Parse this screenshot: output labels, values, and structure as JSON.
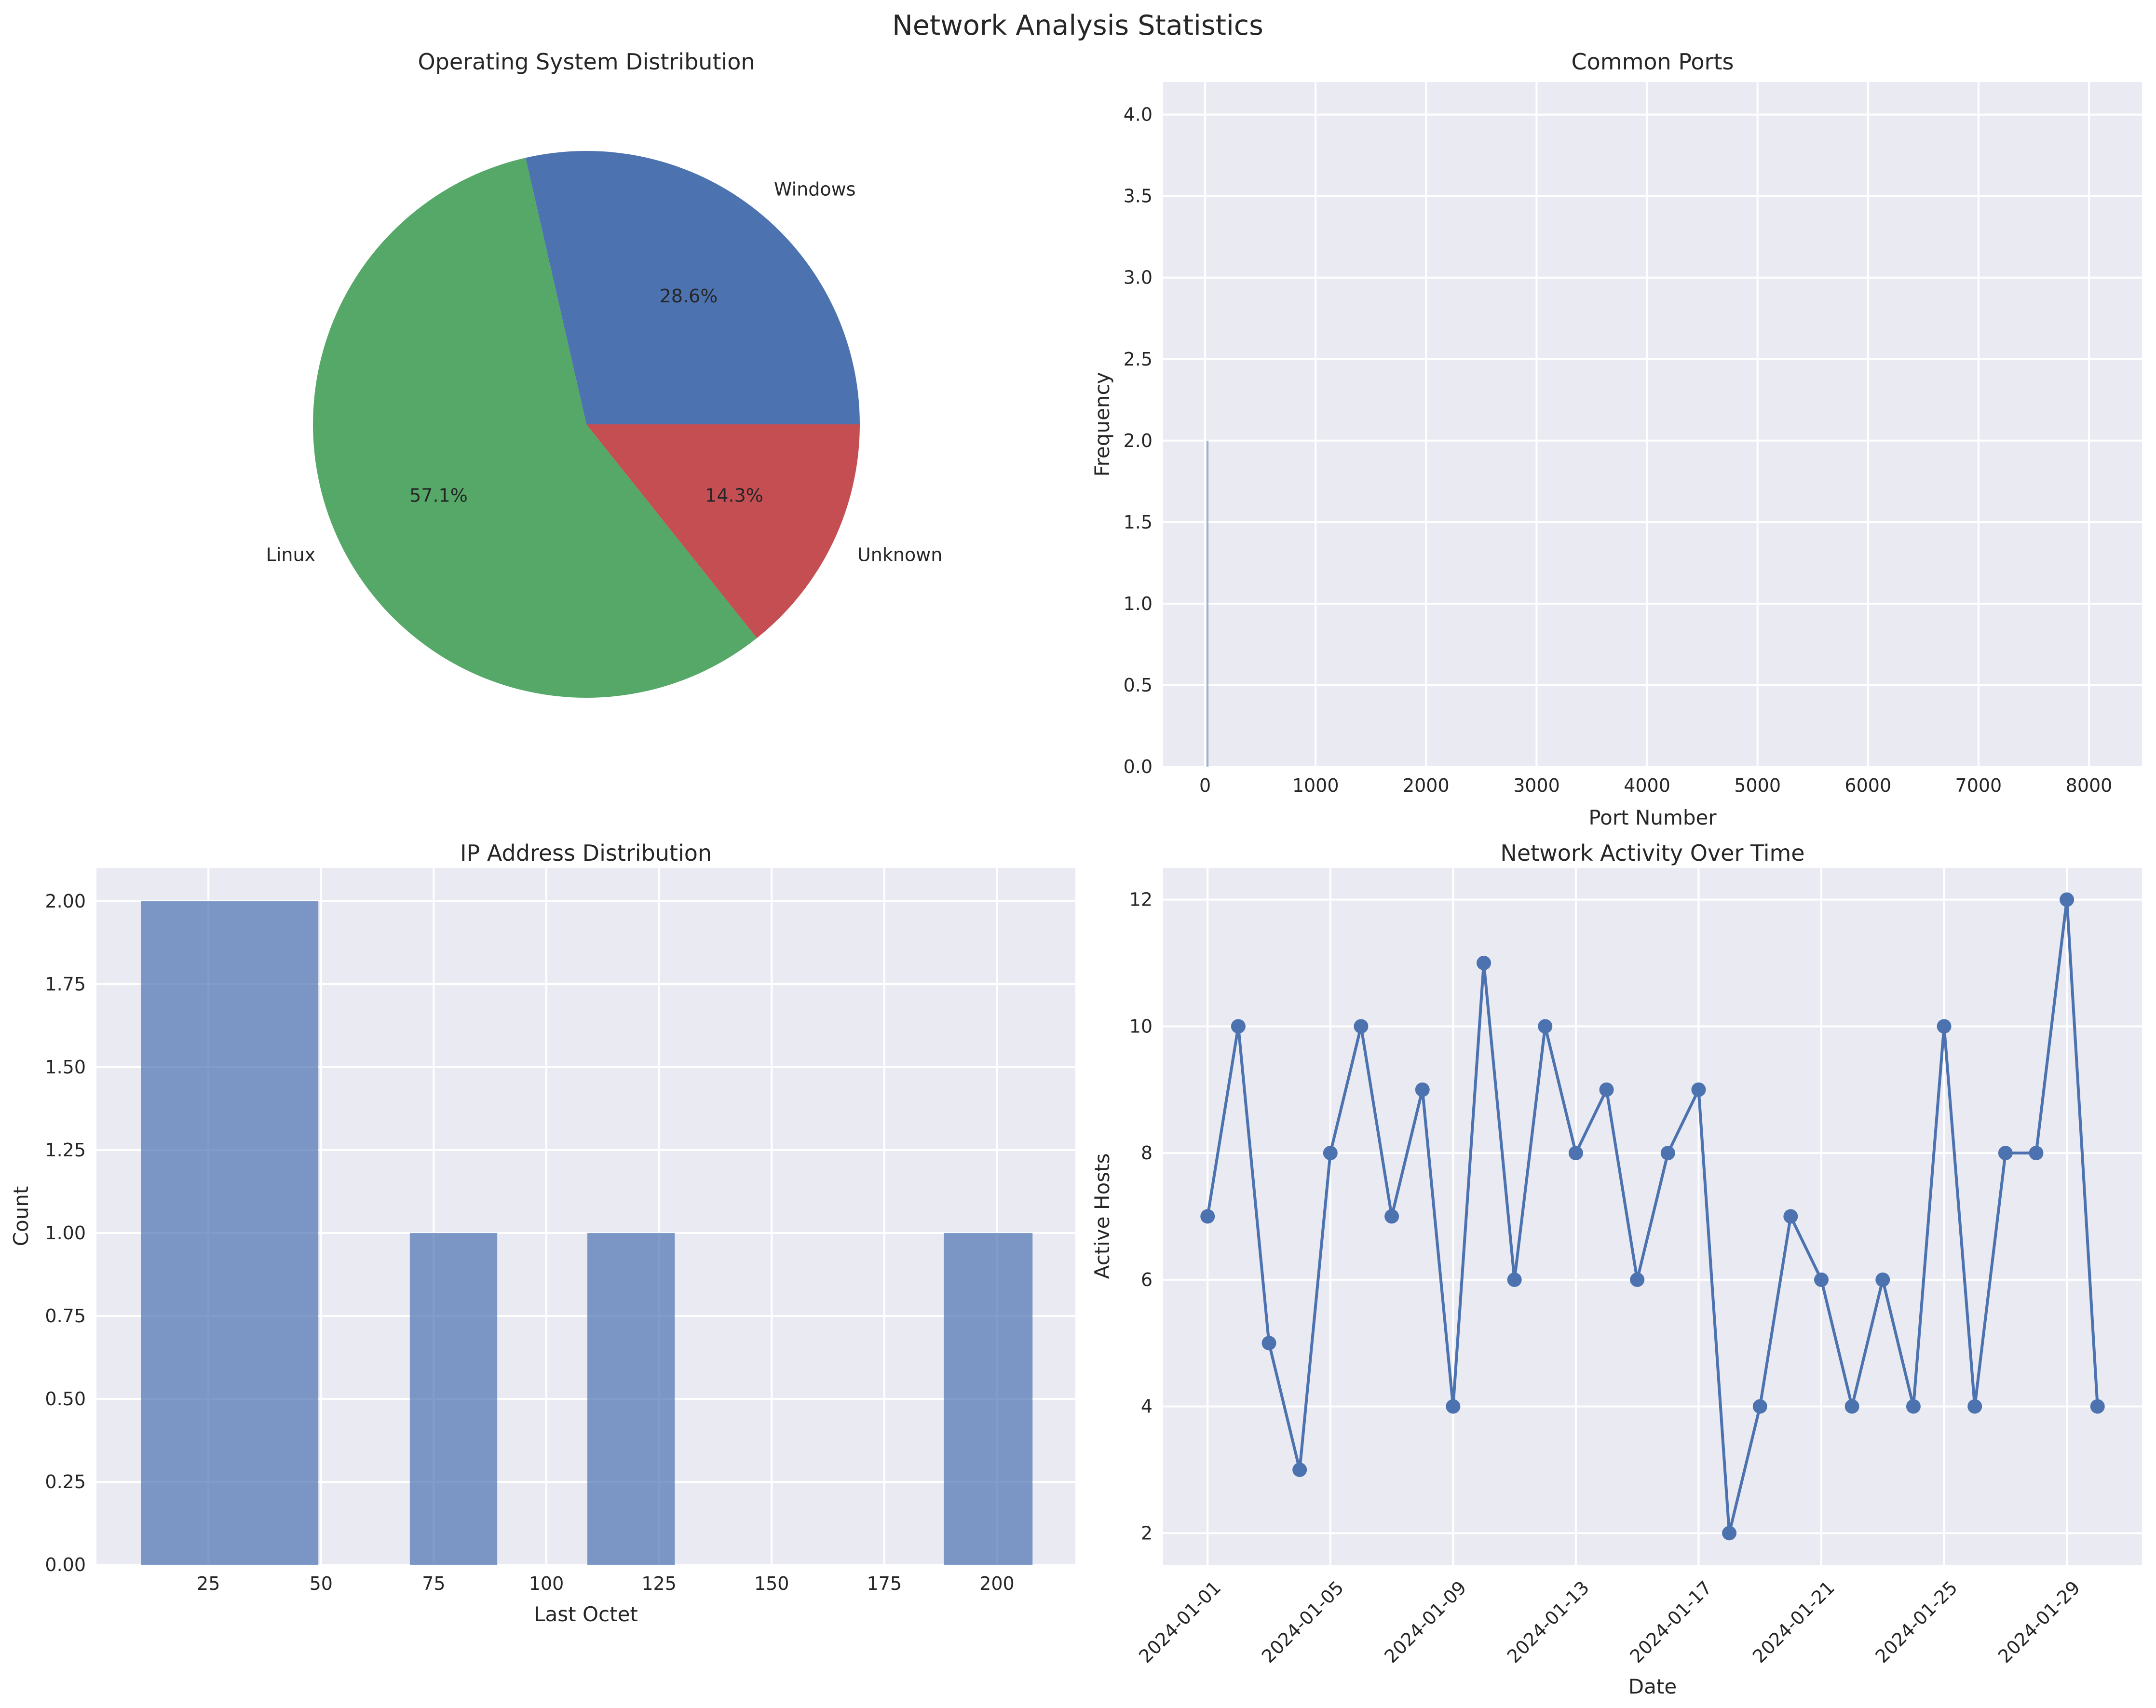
{
  "figure_title": "Network Analysis Statistics",
  "chart_data": [
    {
      "type": "pie",
      "title": "Operating System Distribution",
      "slices": [
        {
          "label": "Windows",
          "pct_label": "28.6%",
          "value": 2,
          "color": "#4c72b0"
        },
        {
          "label": "Linux",
          "pct_label": "57.1%",
          "value": 4,
          "color": "#55a868"
        },
        {
          "label": "Unknown",
          "pct_label": "14.3%",
          "value": 1,
          "color": "#c44e52"
        }
      ]
    },
    {
      "type": "bar",
      "title": "Common Ports",
      "xlabel": "Port Number",
      "ylabel": "Frequency",
      "xlim": [
        -380,
        8480
      ],
      "ylim": [
        0,
        4.2
      ],
      "xticks": [
        0,
        1000,
        2000,
        3000,
        4000,
        5000,
        6000,
        7000,
        8000
      ],
      "yticks": [
        "0.0",
        "0.5",
        "1.0",
        "1.5",
        "2.0",
        "2.5",
        "3.0",
        "3.5",
        "4.0"
      ],
      "bars": [
        {
          "x": 22,
          "value": 2
        }
      ],
      "grid": true
    },
    {
      "type": "bar",
      "title": "IP Address Distribution",
      "xlabel": "Last Octet",
      "ylabel": "Count",
      "xlim": [
        0.15,
        217.4
      ],
      "ylim": [
        0,
        2.1
      ],
      "xticks": [
        25,
        50,
        75,
        100,
        125,
        150,
        175,
        200
      ],
      "yticks": [
        "0.00",
        "0.25",
        "0.50",
        "0.75",
        "1.00",
        "1.25",
        "1.50",
        "1.75",
        "2.00"
      ],
      "bins": [
        {
          "start": 10,
          "end": 49.4,
          "value": 2
        },
        {
          "start": 69.7,
          "end": 89.1,
          "value": 1
        },
        {
          "start": 109.1,
          "end": 128.5,
          "value": 1
        },
        {
          "start": 188.2,
          "end": 207.9,
          "value": 1
        }
      ],
      "grid": true
    },
    {
      "type": "line",
      "title": "Network Activity Over Time",
      "xlabel": "Date",
      "ylabel": "Active Hosts",
      "ylim": [
        1.5,
        12.5
      ],
      "yticks": [
        2,
        4,
        6,
        8,
        10,
        12
      ],
      "x": [
        "2024-01-01",
        "2024-01-02",
        "2024-01-03",
        "2024-01-04",
        "2024-01-05",
        "2024-01-06",
        "2024-01-07",
        "2024-01-08",
        "2024-01-09",
        "2024-01-10",
        "2024-01-11",
        "2024-01-12",
        "2024-01-13",
        "2024-01-14",
        "2024-01-15",
        "2024-01-16",
        "2024-01-17",
        "2024-01-18",
        "2024-01-19",
        "2024-01-20",
        "2024-01-21",
        "2024-01-22",
        "2024-01-23",
        "2024-01-24",
        "2024-01-25",
        "2024-01-26",
        "2024-01-27",
        "2024-01-28",
        "2024-01-29",
        "2024-01-30"
      ],
      "xtick_labels": [
        "2024-01-01",
        "2024-01-05",
        "2024-01-09",
        "2024-01-13",
        "2024-01-17",
        "2024-01-21",
        "2024-01-25",
        "2024-01-29"
      ],
      "values": [
        7,
        10,
        5,
        3,
        8,
        10,
        7,
        9,
        4,
        11,
        6,
        10,
        8,
        9,
        6,
        8,
        9,
        2,
        4,
        7,
        6,
        4,
        6,
        4,
        10,
        4,
        8,
        8,
        12,
        4
      ],
      "color": "#4c72b0",
      "marker": "circle",
      "grid": true
    }
  ]
}
